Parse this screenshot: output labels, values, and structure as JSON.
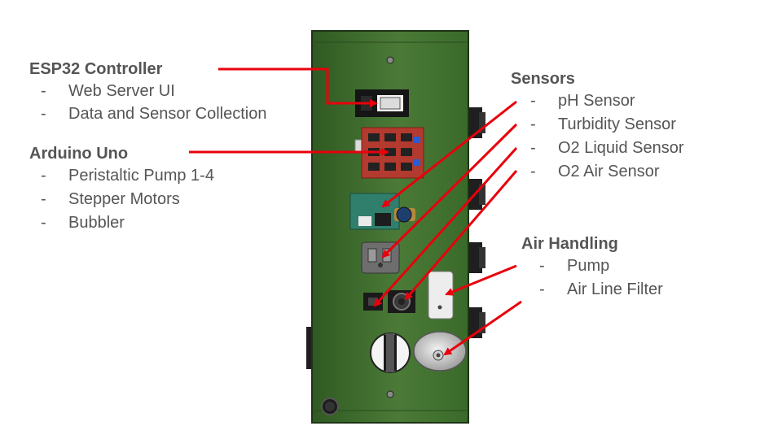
{
  "groups": {
    "esp32": {
      "title": "ESP32 Controller",
      "items": [
        "Web Server UI",
        "Data and Sensor Collection"
      ]
    },
    "uno": {
      "title": "Arduino Uno",
      "items": [
        "Peristaltic Pump 1-4",
        "Stepper Motors",
        "Bubbler"
      ]
    },
    "sensors": {
      "title": "Sensors",
      "items": [
        "pH Sensor",
        "Turbidity Sensor",
        "O2 Liquid Sensor",
        "O2 Air Sensor"
      ]
    },
    "air": {
      "title": "Air Handling",
      "items": [
        "Pump",
        "Air Line Filter"
      ]
    }
  },
  "bullet": "-",
  "colors": {
    "arrow": "#e8000b",
    "text": "#555555",
    "board": "#3f6b30",
    "board_edge": "#243d1b",
    "shield": "#b23a2e",
    "sensor_board": "#2f7f6c"
  }
}
